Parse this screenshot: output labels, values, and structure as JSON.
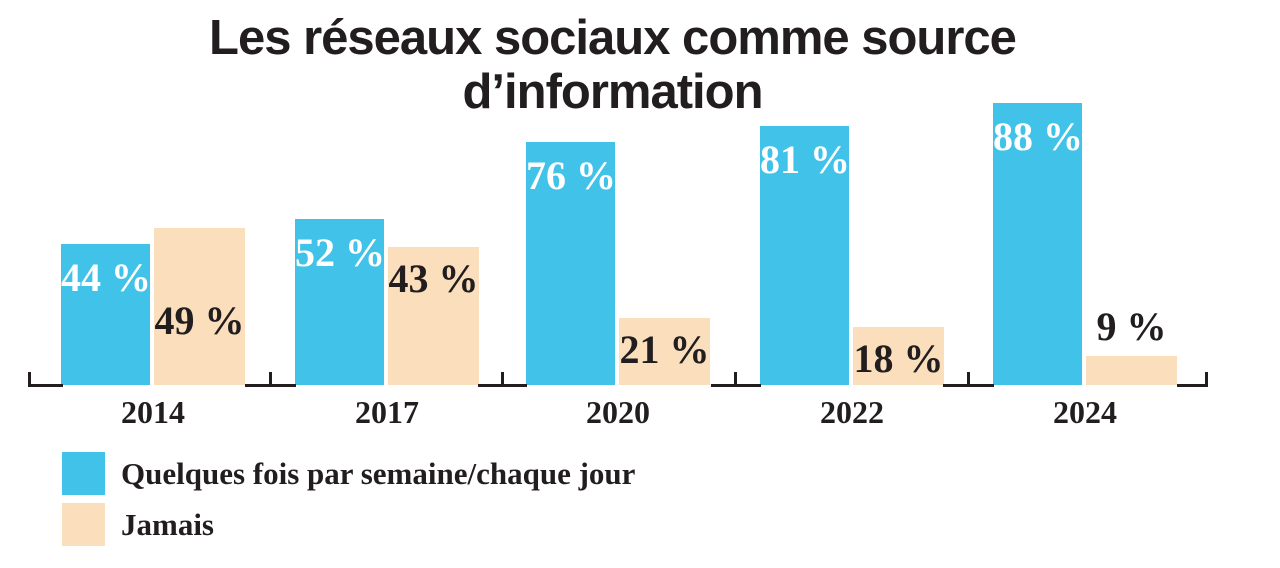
{
  "title": {
    "line1": "Les réseaux sociaux comme source",
    "line2": "d’information"
  },
  "colors": {
    "series1": "#41C2E9",
    "series2": "#FBDFBD",
    "axis": "#221E1F",
    "title_text": "#221E1F",
    "label_on_series1": "#FFFFFF",
    "label_on_series2": "#221E1F"
  },
  "legend": {
    "items": [
      {
        "label": "Quelques fois par semaine/chaque jour",
        "color": "#41C2E9"
      },
      {
        "label": "Jamais",
        "color": "#FBDFBD"
      }
    ]
  },
  "chart_data": {
    "type": "bar",
    "title": "Les réseaux sociaux comme source d’information",
    "categories": [
      "2014",
      "2017",
      "2020",
      "2022",
      "2024"
    ],
    "series": [
      {
        "name": "Quelques fois par semaine/chaque jour",
        "color": "#41C2E9",
        "values": [
          44,
          52,
          76,
          81,
          88
        ]
      },
      {
        "name": "Jamais",
        "color": "#FBDFBD",
        "values": [
          49,
          43,
          21,
          18,
          9
        ]
      }
    ],
    "value_label_format": "{value} %",
    "unit": "%",
    "ylim": [
      0,
      100
    ],
    "grid": false,
    "y_axis_shown": false,
    "legend_position": "bottom-left",
    "series2_label_placements": [
      "inside-low",
      "inside",
      "inside",
      "inside",
      "above"
    ]
  }
}
